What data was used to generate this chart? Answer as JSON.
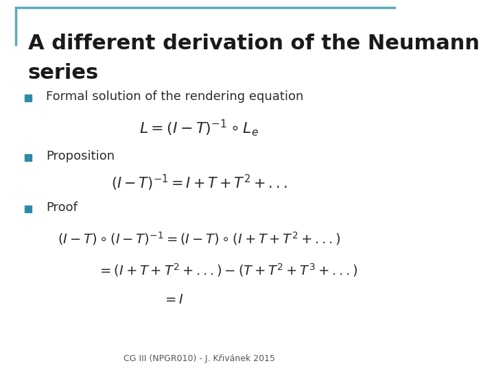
{
  "title_line1": "A different derivation of the Neumann",
  "title_line2": "series",
  "title_color": "#1a1a1a",
  "title_fontsize": 22,
  "bullet_color": "#2E8BA5",
  "bullet1": "Formal solution of the rendering equation",
  "bullet2": "Proposition",
  "bullet3": "Proof",
  "eq1": "$L = (I - T)^{-1} \\circ L_e$",
  "eq2": "$(I - T)^{-1} = I + T + T^2 + ...$",
  "eq3a": "$(I - T) \\circ (I - T)^{-1} = (I - T) \\circ (I + T + T^2 + ...)$",
  "eq3b": "$= (I + T + T^2 + ...) - (T + T^2 + T^3 + ...)$",
  "eq3c": "$= I$",
  "footer": "CG III (NPGR010) - J. Křivánek 2015",
  "footer_fontsize": 9,
  "border_color": "#5AACBF",
  "text_color": "#2b2b2b",
  "body_fontsize": 13,
  "math_fontsize": 14,
  "background_color": "#ffffff"
}
